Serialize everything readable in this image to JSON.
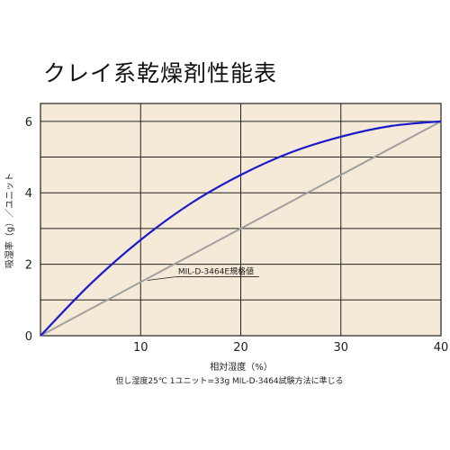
{
  "title": "クレイ系乾燥剤性能表",
  "chart_data": {
    "type": "line",
    "xlabel": "相対湿度（%）",
    "ylabel": "吸湿率（g）／ユニット",
    "note": "但し湿度25℃ 1ユニット=33g MIL-D-3464試験方法に準じる",
    "xlim": [
      0,
      40
    ],
    "ylim": [
      0,
      6.5
    ],
    "x_ticks": [
      10,
      20,
      30,
      40
    ],
    "y_ticks": [
      0,
      2,
      4,
      6
    ],
    "grid": true,
    "background_color": "#f5ead7",
    "series": [
      {
        "name": "",
        "color": "#1a1acc",
        "x": [
          0,
          5,
          10,
          15,
          20,
          25,
          30,
          35,
          40
        ],
        "y": [
          0,
          1.45,
          2.68,
          3.7,
          4.5,
          5.13,
          5.57,
          5.87,
          6.0
        ]
      },
      {
        "name": "MIL-D-3464E規格値",
        "color": "#a0a0a0",
        "x": [
          0,
          40
        ],
        "y": [
          0,
          6
        ]
      }
    ],
    "annotations": [
      {
        "text": "MIL-D-3464E規格値",
        "x": 10.5,
        "y": 1.5
      }
    ]
  }
}
